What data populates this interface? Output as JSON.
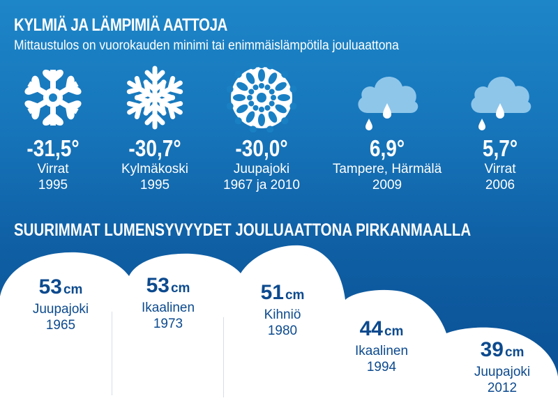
{
  "header": {
    "title": "KYLMIÄ JA LÄMPIMIÄ AATTOJA",
    "subtitle": "Mittaustulos on vuorokauden minimi tai enimmäislämpötila jouluaattona"
  },
  "records": [
    {
      "icon": "snowflake-hearts-icon",
      "temp": "-31,5°",
      "place": "Virrat",
      "year": "1995"
    },
    {
      "icon": "snowflake-icon",
      "temp": "-30,7°",
      "place": "Kylmäkoski",
      "year": "1995"
    },
    {
      "icon": "snowflake-lace-icon",
      "temp": "-30,0°",
      "place": "Juupajoki",
      "year": "1967 ja 2010"
    },
    {
      "icon": "rain-cloud-icon",
      "temp": "6,9°",
      "place": "Tampere, Härmälä",
      "year": "2009"
    },
    {
      "icon": "rain-cloud-icon",
      "temp": "5,7°",
      "place": "Virrat",
      "year": "2006"
    }
  ],
  "snow_heading": "SUURIMMAT LUMENSYVYYDET JOULUAATTONA PIRKANMAALLA",
  "snow_depths": [
    {
      "value": "53",
      "unit": "cm",
      "place": "Juupajoki",
      "year": "1965"
    },
    {
      "value": "53",
      "unit": "cm",
      "place": "Ikaalinen",
      "year": "1973"
    },
    {
      "value": "51",
      "unit": "cm",
      "place": "Kihniö",
      "year": "1980"
    },
    {
      "value": "44",
      "unit": "cm",
      "place": "Ikaalinen",
      "year": "1994"
    },
    {
      "value": "39",
      "unit": "cm",
      "place": "Juupajoki",
      "year": "2012"
    }
  ],
  "colors": {
    "background_top": "#1d86c8",
    "background_bottom": "#0a4d92",
    "snow": "#ffffff",
    "depth_text": "#0c4a8e",
    "cloud": "#8ec6ea"
  }
}
